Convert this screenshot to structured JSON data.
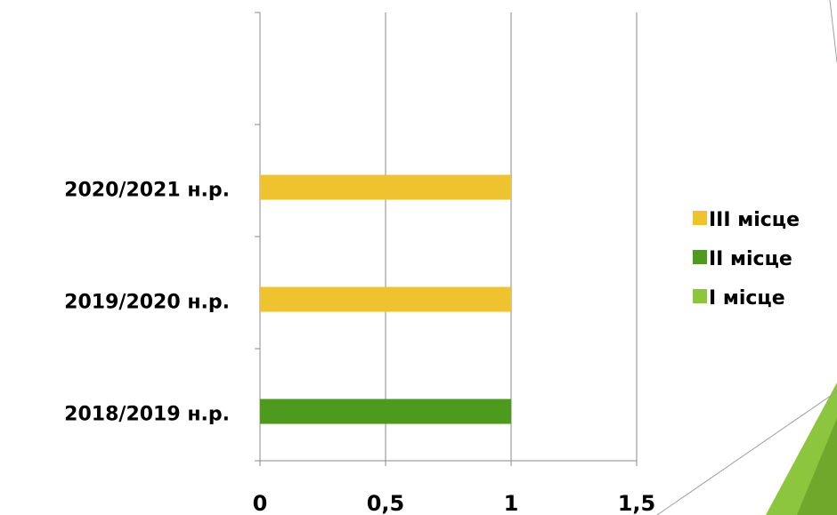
{
  "chart_data": {
    "type": "bar",
    "orientation": "horizontal",
    "stacked": true,
    "title": "",
    "xlabel": "",
    "ylabel": "",
    "categories": [
      "2018/2019 н.р.",
      "2019/2020 н.р.",
      "2020/2021 н.р."
    ],
    "series": [
      {
        "name": "I місце",
        "color": "#8cc63f",
        "values": [
          0,
          0,
          0
        ]
      },
      {
        "name": "II місце",
        "color": "#4e9a1e",
        "values": [
          1,
          0,
          0
        ]
      },
      {
        "name": "III місце",
        "color": "#efc230",
        "values": [
          0,
          1,
          1
        ]
      }
    ],
    "xlim": [
      0,
      1.5
    ],
    "xticks": [
      0,
      0.5,
      1,
      1.5
    ],
    "xtick_labels": [
      "0",
      "0,5",
      "1",
      "1,5"
    ],
    "grid": "vertical",
    "legend": {
      "placement": "right",
      "order": [
        "III місце",
        "II місце",
        "I місце"
      ]
    }
  },
  "decoration": {
    "accent_color": "#8cc63f",
    "shape": "green-corner-triangle"
  }
}
